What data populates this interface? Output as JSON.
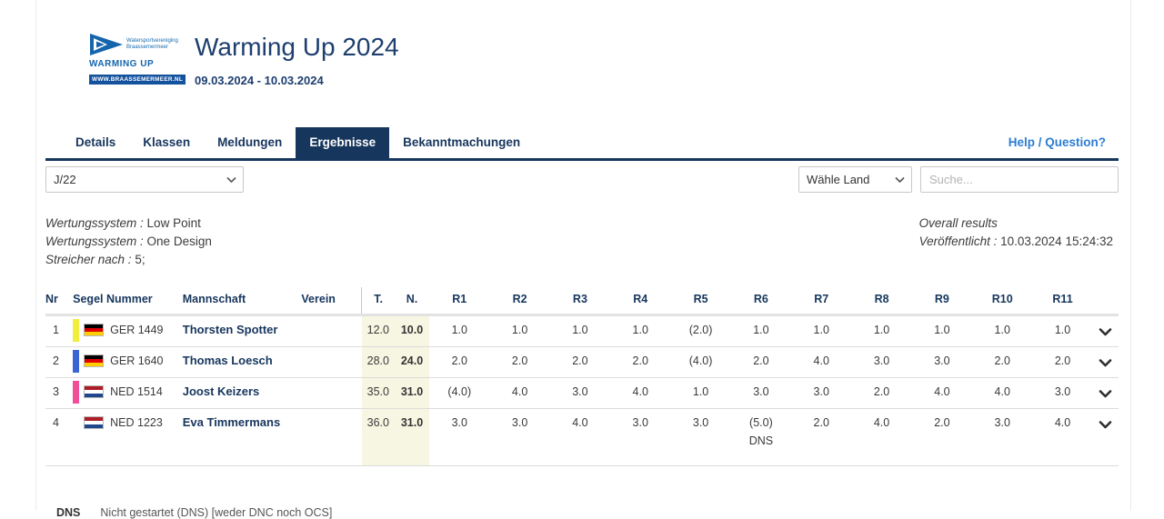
{
  "header": {
    "title": "Warming Up 2024",
    "date_range": "09.03.2024 - 10.03.2024",
    "logo": {
      "org_line1": "Watersportvereniging",
      "org_line2": "Braassemermeer",
      "event": "WARMING UP",
      "website": "WWW.BRAASSEMERMEER.NL"
    }
  },
  "nav": {
    "tabs": [
      {
        "label": "Details",
        "active": false
      },
      {
        "label": "Klassen",
        "active": false
      },
      {
        "label": "Meldungen",
        "active": false
      },
      {
        "label": "Ergebnisse",
        "active": true
      },
      {
        "label": "Bekanntmachungen",
        "active": false
      }
    ],
    "help_link": "Help / Question?"
  },
  "filters": {
    "class_selected": "J/22",
    "country_selected": "Wähle Land",
    "search_placeholder": "Suche..."
  },
  "scoring_info": {
    "lines": [
      {
        "label": "Wertungssystem",
        "value": "Low Point"
      },
      {
        "label": "Wertungssystem",
        "value": "One Design"
      },
      {
        "label": "Streicher nach",
        "value": "5;"
      }
    ],
    "overall": "Overall results",
    "published_label": "Veröffentlicht",
    "published_value": "10.03.2024 15:24:32"
  },
  "results": {
    "columns": [
      "Nr",
      "Segel Nummer",
      "Mannschaft",
      "Verein",
      "T.",
      "N.",
      "R1",
      "R2",
      "R3",
      "R4",
      "R5",
      "R6",
      "R7",
      "R8",
      "R9",
      "R10",
      "R11"
    ],
    "rows": [
      {
        "nr": "1",
        "bar_color": "#f2ee3f",
        "flag": "GER",
        "sail": "GER 1449",
        "crew": "Thorsten Spotter",
        "verein": "",
        "total": "12.0",
        "net": "10.0",
        "races": [
          "1.0",
          "1.0",
          "1.0",
          "1.0",
          "(2.0)",
          "1.0",
          "1.0",
          "1.0",
          "1.0",
          "1.0",
          "1.0"
        ]
      },
      {
        "nr": "2",
        "bar_color": "#3a66d4",
        "flag": "GER",
        "sail": "GER 1640",
        "crew": "Thomas Loesch",
        "verein": "",
        "total": "28.0",
        "net": "24.0",
        "races": [
          "2.0",
          "2.0",
          "2.0",
          "2.0",
          "(4.0)",
          "2.0",
          "4.0",
          "3.0",
          "3.0",
          "2.0",
          "2.0"
        ]
      },
      {
        "nr": "3",
        "bar_color": "#f04f98",
        "flag": "NED",
        "sail": "NED 1514",
        "crew": "Joost Keizers",
        "verein": "",
        "total": "35.0",
        "net": "31.0",
        "races": [
          "(4.0)",
          "4.0",
          "3.0",
          "4.0",
          "1.0",
          "3.0",
          "3.0",
          "2.0",
          "4.0",
          "4.0",
          "3.0"
        ]
      },
      {
        "nr": "4",
        "bar_color": null,
        "flag": "NED",
        "sail": "NED 1223",
        "crew": "Eva Timmermans",
        "verein": "",
        "total": "36.0",
        "net": "31.0",
        "races": [
          "3.0",
          "3.0",
          "4.0",
          "3.0",
          "3.0",
          {
            "score": "(5.0)",
            "code": "DNS"
          },
          "2.0",
          "4.0",
          "2.0",
          "3.0",
          "4.0"
        ]
      }
    ]
  },
  "legend": {
    "code": "DNS",
    "text": "Nicht gestartet (DNS) [weder DNC noch OCS]"
  },
  "colors": {
    "navy": "#17365d",
    "link_blue": "#2d7dd2",
    "score_highlight_bg": "#f6f6e2",
    "bar_yellow": "#f2ee3f",
    "bar_blue": "#3a66d4",
    "bar_pink": "#f04f98",
    "flag_ger": [
      "#000000",
      "#dd0000",
      "#ffce00"
    ],
    "flag_ned": [
      "#ae1c28",
      "#ffffff",
      "#21468b"
    ]
  }
}
